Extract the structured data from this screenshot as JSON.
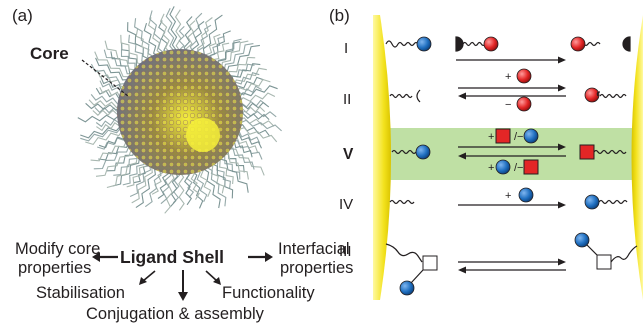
{
  "panel_a": {
    "label": "(a)",
    "core_label": "Core",
    "center_label": "Ligand Shell",
    "left_label_line1": "Modify core",
    "left_label_line2": "properties",
    "right_label_line1": "Interfacial",
    "right_label_line2": "properties",
    "bottom_left_label": "Stabilisation",
    "bottom_right_label": "Functionality",
    "bottom_label": "Conjugation & assembly"
  },
  "panel_b": {
    "label": "(b)",
    "rows": [
      {
        "numeral": "I"
      },
      {
        "numeral": "II",
        "forward_sign": "+",
        "reverse_sign": "−"
      },
      {
        "numeral": "V",
        "forward_sign": "+",
        "separator": "/−",
        "reverse_sign": "+",
        "reverse_separator": "/−"
      },
      {
        "numeral": "IV",
        "forward_sign": "+"
      },
      {
        "numeral": "III"
      }
    ]
  },
  "colors": {
    "nanoparticle_yellow": "#f3e21d",
    "highlight_green": "#bfe0a4",
    "blue_sphere": "#1f6fc0",
    "red_sphere": "#e32626",
    "red_square": "#e32626",
    "ligand_line": "#231f20"
  }
}
